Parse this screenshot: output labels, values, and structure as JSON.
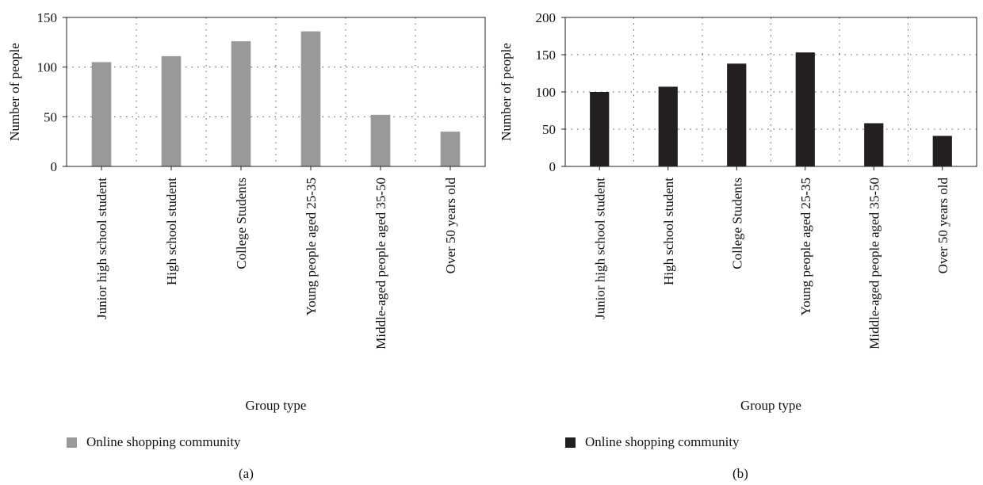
{
  "chart_data": [
    {
      "type": "bar",
      "categories": [
        "Junior high school student",
        "High school student",
        "College Students",
        "Young people aged 25-35",
        "Middle-aged people aged 35-50",
        "Over 50 years old"
      ],
      "series": [
        {
          "name": "Online shopping community",
          "values": [
            105,
            111,
            126,
            136,
            52,
            35
          ],
          "color": "#999999"
        }
      ],
      "xlabel": "Group type",
      "ylabel": "Number of people",
      "ylim": [
        0,
        150
      ],
      "yticks": [
        0,
        50,
        100,
        150
      ],
      "grid": true,
      "legend_position": "bottom-left",
      "caption": "(a)"
    },
    {
      "type": "bar",
      "categories": [
        "Junior high school student",
        "High school student",
        "College Students",
        "Young people aged 25-35",
        "Middle-aged people aged 35-50",
        "Over 50 years old"
      ],
      "series": [
        {
          "name": "Online shopping community",
          "values": [
            100,
            107,
            138,
            153,
            58,
            41
          ],
          "color": "#231f20"
        }
      ],
      "xlabel": "Group type",
      "ylabel": "Number of people",
      "ylim": [
        0,
        200
      ],
      "yticks": [
        0,
        50,
        100,
        150,
        200
      ],
      "grid": true,
      "legend_position": "bottom-left",
      "caption": "(b)"
    }
  ]
}
